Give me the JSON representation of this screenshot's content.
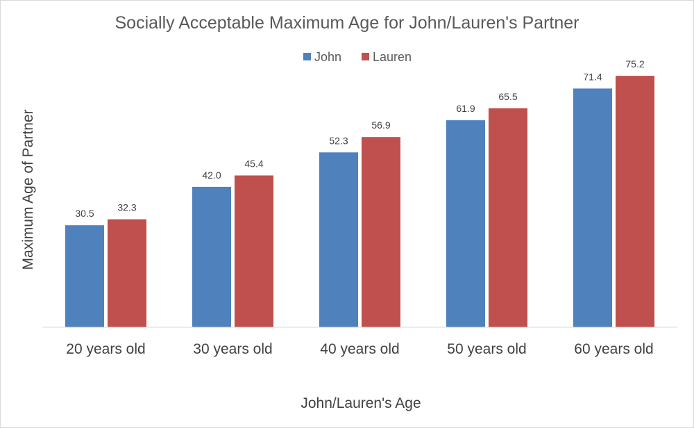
{
  "chart_data": {
    "type": "bar",
    "title": "Socially Acceptable Maximum Age for John/Lauren's Partner",
    "xlabel": "John/Lauren's Age",
    "ylabel": "Maximum Age of Partner",
    "categories": [
      "20 years old",
      "30 years old",
      "40 years old",
      "50 years old",
      "60 years old"
    ],
    "series": [
      {
        "name": "John",
        "color": "#4f81bd",
        "values": [
          30.5,
          42.0,
          52.3,
          61.9,
          71.4
        ],
        "labels": [
          "30.5",
          "42.0",
          "52.3",
          "61.9",
          "71.4"
        ]
      },
      {
        "name": "Lauren",
        "color": "#c0504d",
        "values": [
          32.3,
          45.4,
          56.9,
          65.5,
          75.2
        ],
        "labels": [
          "32.3",
          "45.4",
          "56.9",
          "65.5",
          "75.2"
        ]
      }
    ],
    "ylim": [
      0,
      80
    ],
    "grid": false,
    "legend_position": "top-center",
    "y_axis_ticks_visible": false
  }
}
